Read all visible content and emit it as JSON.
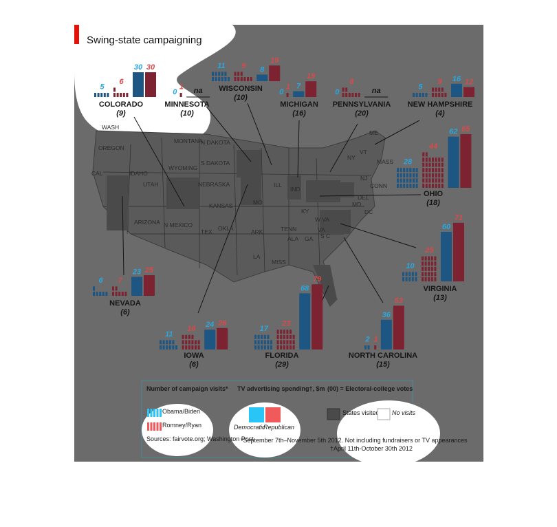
{
  "title": "Swing-state campaigning",
  "states": [
    {
      "name": "COLORADO",
      "electoral": "(9)",
      "obama_visits": 5,
      "romney_visits": 6,
      "dem_spending": 30,
      "rep_spending": 30
    },
    {
      "name": "MINNESOTA",
      "electoral": "(10)",
      "obama_visits": 0,
      "romney_visits": 1,
      "spending_note": "na"
    },
    {
      "name": "WISCONSIN",
      "electoral": "(10)",
      "obama_visits": 11,
      "romney_visits": 9,
      "dem_spending": 8,
      "rep_spending": 19
    },
    {
      "name": "MICHIGAN",
      "electoral": "(16)",
      "obama_visits": 0,
      "romney_visits": 1,
      "dem_spending": 7,
      "rep_spending": 19
    },
    {
      "name": "PENNSYLVANIA",
      "electoral": "(20)",
      "obama_visits": 0,
      "romney_visits": 8,
      "spending_note": "na"
    },
    {
      "name": "NEW HAMPSHIRE",
      "electoral": "(4)",
      "obama_visits": 5,
      "romney_visits": 9,
      "dem_spending": 16,
      "rep_spending": 12
    },
    {
      "name": "OHIO",
      "electoral": "(18)",
      "obama_visits": 28,
      "romney_visits": 44,
      "dem_spending": 62,
      "rep_spending": 65
    },
    {
      "name": "VIRGINIA",
      "electoral": "(13)",
      "obama_visits": 10,
      "romney_visits": 25,
      "dem_spending": 60,
      "rep_spending": 71
    },
    {
      "name": "NORTH CAROLINA",
      "electoral": "(15)",
      "obama_visits": 2,
      "romney_visits": 1,
      "dem_spending": 36,
      "rep_spending": 53
    },
    {
      "name": "FLORIDA",
      "electoral": "(29)",
      "obama_visits": 17,
      "romney_visits": 23,
      "dem_spending": 68,
      "rep_spending": 79
    },
    {
      "name": "IOWA",
      "electoral": "(6)",
      "obama_visits": 11,
      "romney_visits": 16,
      "dem_spending": 24,
      "rep_spending": 26
    },
    {
      "name": "NEVADA",
      "electoral": "(6)",
      "obama_visits": 6,
      "romney_visits": 7,
      "dem_spending": 23,
      "rep_spending": 25
    }
  ],
  "map_labels": [
    "WASH",
    "OREGON",
    "CAL",
    "IDAHO",
    "MONTANA",
    "WYOMING",
    "UTAH",
    "N DAKOTA",
    "S DAKOTA",
    "NEBRASKA",
    "KANSAS",
    "ARIZONA",
    "N MEXICO",
    "OKLA",
    "TEX",
    "MO",
    "ARK",
    "LA",
    "MISS",
    "ALA",
    "GA",
    "TENN",
    "ILL",
    "IND",
    "KY",
    "W VA",
    "VA",
    "S C",
    "MD",
    "DEL",
    "DC",
    "NJ",
    "CONN",
    "MASS",
    "NY",
    "VT",
    "ME"
  ],
  "legend": {
    "visits_title": "Number of campaign visits*",
    "obama": "Obama/Biden",
    "romney": "Romney/Ryan",
    "spending_title": "TV advertising spending†, $m",
    "democratic": "Democratic",
    "republican": "Republican",
    "electoral_key": "(00) = Electoral-college votes",
    "visited": "States visited",
    "no_visits": "No visits",
    "sources": "Sources: fairvote.org; Washington Post",
    "note_visits": "*September 7th–November 5th 2012. Not including fundraisers or TV appearances",
    "note_spending": "†April 11th-October 30th 2012"
  }
}
